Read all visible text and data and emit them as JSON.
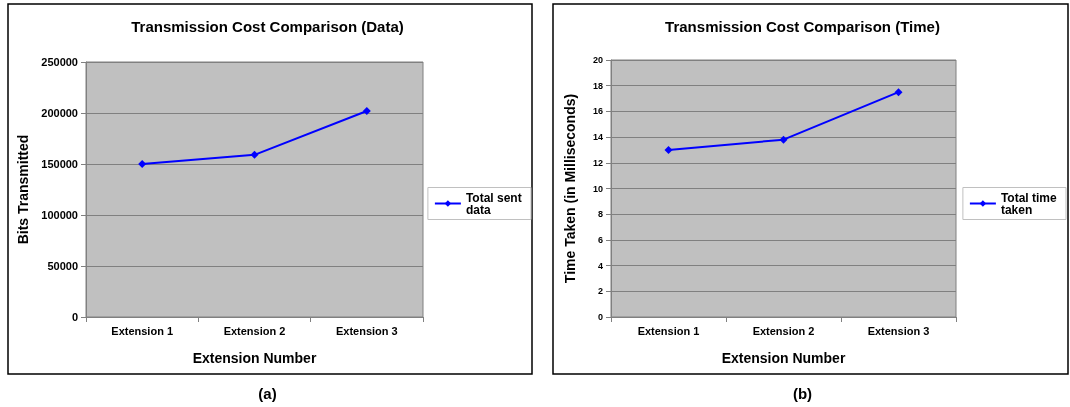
{
  "chart_data": [
    {
      "type": "line",
      "title": "Transmission Cost Comparison (Data)",
      "xlabel": "Extension Number",
      "ylabel": "Bits Transmitted",
      "categories": [
        "Extension 1",
        "Extension 2",
        "Extension 3"
      ],
      "series": [
        {
          "name": "Total sent data",
          "color": "#0000ff",
          "values": [
            150000,
            159000,
            202000
          ]
        }
      ],
      "ylim": [
        0,
        250000
      ],
      "yticks": [
        0,
        50000,
        100000,
        150000,
        200000,
        250000
      ],
      "grid": "y",
      "legend": "right",
      "marker": "diamond",
      "annotations": [
        "(a)"
      ]
    },
    {
      "type": "line",
      "title": "Transmission Cost Comparison (Time)",
      "xlabel": "Extension Number",
      "ylabel": "Time Taken (in Milliseconds)",
      "categories": [
        "Extension 1",
        "Extension 2",
        "Extension 3"
      ],
      "series": [
        {
          "name": "Total time taken",
          "color": "#0000ff",
          "values": [
            13.0,
            13.8,
            17.5
          ]
        }
      ],
      "ylim": [
        0,
        20
      ],
      "yticks": [
        0,
        2,
        4,
        6,
        8,
        10,
        12,
        14,
        16,
        18,
        20
      ],
      "grid": "y",
      "legend": "right",
      "marker": "diamond",
      "annotations": [
        "(b)"
      ]
    }
  ]
}
